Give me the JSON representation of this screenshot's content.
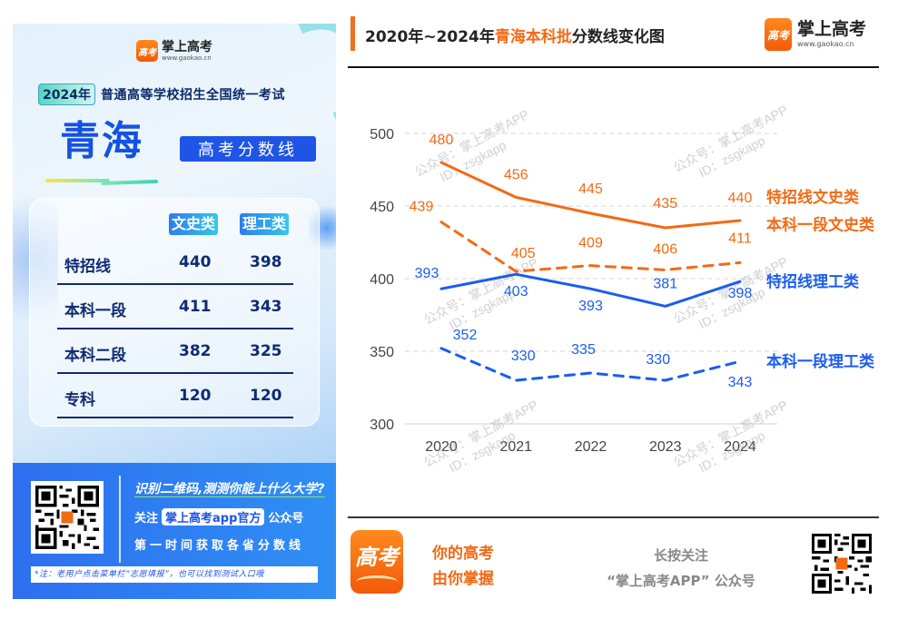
{
  "poster": {
    "brand_name": "掌上高考",
    "brand_url": "www.gaokao.cn",
    "logo_glyph": "高考",
    "year_label": "2024年",
    "exam_title": "普通高等学校招生全国统一考试",
    "province": "青海",
    "subtitle": "高考分数线",
    "table": {
      "columns": [
        "文史类",
        "理工类"
      ],
      "rows": [
        {
          "label": "特招线",
          "wenshi": "440",
          "ligong": "398"
        },
        {
          "label": "本科一段",
          "wenshi": "411",
          "ligong": "343"
        },
        {
          "label": "本科二段",
          "wenshi": "382",
          "ligong": "325"
        },
        {
          "label": "专科",
          "wenshi": "120",
          "ligong": "120"
        }
      ]
    },
    "promo_line1": "识别二维码,测测你能上什么大学?",
    "promo_line2_prefix": "关注",
    "promo_line2_tag": "掌上高考app官方",
    "promo_line2_suffix": "公众号",
    "promo_line3": "第一时间获取各省分数线",
    "note": "*注：老用户点击菜单栏“志愿填报”，也可以找到测试入口哦"
  },
  "header": {
    "title_prefix": "2020年~2024年",
    "title_highlight": "青海本科批",
    "title_suffix": "分数线变化图",
    "brand_name": "掌上高考",
    "brand_url": "www.gaokao.cn",
    "logo_glyph": "高考"
  },
  "footer": {
    "logo_glyph": "高考",
    "slogan_line1": "你的高考",
    "slogan_line2": "由你掌握",
    "follow_line1": "长按关注",
    "follow_line2": "“掌上高考APP” 公众号"
  },
  "colors": {
    "orange": "#f26a14",
    "blue": "#1a5cf0",
    "navy": "#0e2b72",
    "accent_blue": "#1f55e6"
  },
  "chart_data": {
    "type": "line",
    "title": "2020年~2024年青海本科批分数线变化图",
    "xlabel": "",
    "ylabel": "",
    "categories": [
      "2020",
      "2021",
      "2022",
      "2023",
      "2024"
    ],
    "ylim": [
      300,
      500
    ],
    "yticks": [
      300,
      350,
      400,
      450,
      500
    ],
    "grid": true,
    "legend": "inline-right",
    "watermark": [
      "公众号：掌上高考APP",
      "ID：zsgkapp"
    ],
    "series": [
      {
        "name": "特招线文史类",
        "values": [
          480,
          456,
          445,
          435,
          440
        ],
        "color": "#f26a14",
        "dashed": false
      },
      {
        "name": "本科一段文史类",
        "values": [
          439,
          405,
          409,
          406,
          411
        ],
        "color": "#f26a14",
        "dashed": true
      },
      {
        "name": "特招线理工类",
        "values": [
          393,
          403,
          393,
          381,
          398
        ],
        "color": "#1a5cf0",
        "dashed": false
      },
      {
        "name": "本科一段理工类",
        "values": [
          352,
          330,
          335,
          330,
          343
        ],
        "color": "#1a5cf0",
        "dashed": true
      }
    ]
  }
}
